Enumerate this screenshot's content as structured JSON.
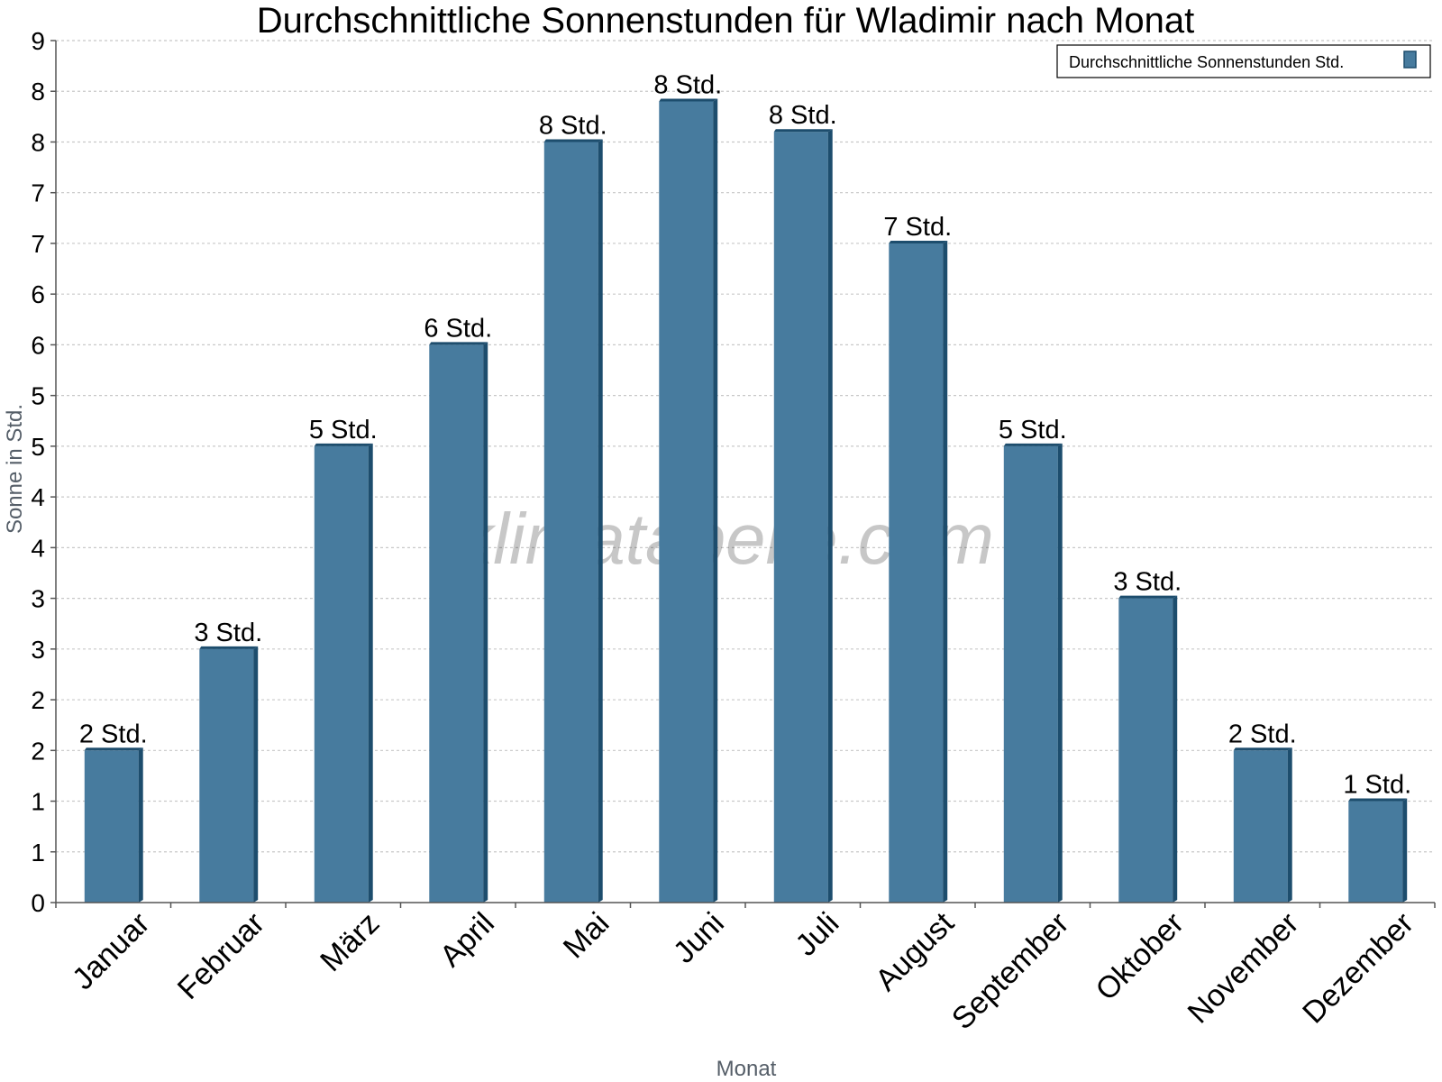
{
  "chart_data": {
    "type": "bar",
    "title": "Durchschnittliche Sonnenstunden für Wladimir nach Monat",
    "xlabel": "Monat",
    "ylabel": "Sonne in Std.",
    "categories": [
      "Januar",
      "Februar",
      "März",
      "April",
      "Mai",
      "Juni",
      "Juli",
      "August",
      "September",
      "Oktober",
      "November",
      "Dezember"
    ],
    "series": [
      {
        "name": "Durchschnittliche Sonnenstunden Std.",
        "values": [
          1.5,
          2.5,
          4.5,
          5.5,
          7.5,
          7.9,
          7.6,
          6.5,
          4.5,
          3.0,
          1.5,
          1.0
        ],
        "labels": [
          "2 Std.",
          "3 Std.",
          "5 Std.",
          "6 Std.",
          "8 Std.",
          "8 Std.",
          "8 Std.",
          "7 Std.",
          "5 Std.",
          "3 Std.",
          "2 Std.",
          "1 Std."
        ]
      }
    ],
    "ylim": [
      0,
      8.5
    ],
    "yticks": [
      0,
      0.5,
      1,
      1.5,
      2,
      2.5,
      3,
      3.5,
      4,
      4.5,
      5,
      5.5,
      6,
      6.5,
      7,
      7.5,
      8,
      8.5
    ],
    "ytick_labels": [
      "0",
      "1",
      "1",
      "2",
      "2",
      "3",
      "3",
      "4",
      "4",
      "5",
      "5",
      "6",
      "6",
      "7",
      "7",
      "8",
      "8",
      "9"
    ],
    "grid": true,
    "legend": "top-right",
    "colors": {
      "bar": "#477b9e",
      "bar_side": "#1d4d6d",
      "bar_top": "#1d4d6d",
      "grid": "#c8c8c8",
      "axis": "#555555"
    },
    "watermark": "klimatabelle.com"
  }
}
